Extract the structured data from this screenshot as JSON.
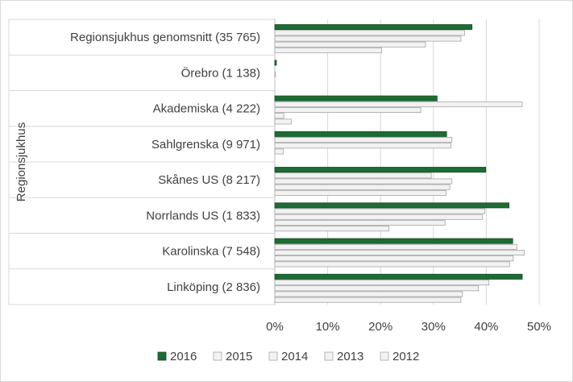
{
  "chart_data": {
    "type": "bar",
    "orientation": "horizontal",
    "ylabel": "Regionsjukhus",
    "xlabel": "",
    "xlim": [
      0,
      50
    ],
    "x_ticks": [
      "0%",
      "10%",
      "20%",
      "30%",
      "40%",
      "50%"
    ],
    "categories": [
      "Regionsjukhus genomsnitt (35 765)",
      "Örebro (1 138)",
      "Akademiska (4 222)",
      "Sahlgrenska (9 971)",
      "Skånes US (8 217)",
      "Norrlands US (1 833)",
      "Karolinska (7 548)",
      "Linköping (2 836)"
    ],
    "series": [
      {
        "name": "2016",
        "color": "#1e6b34",
        "values": [
          37.3,
          0.3,
          30.7,
          32.5,
          39.9,
          44.3,
          45.0,
          46.8
        ]
      },
      {
        "name": "2015",
        "color": "#f2f2f2",
        "values": [
          35.9,
          0,
          46.8,
          33.5,
          29.6,
          39.7,
          45.8,
          40.5
        ]
      },
      {
        "name": "2014",
        "color": "#f2f2f2",
        "values": [
          35.2,
          0.1,
          27.6,
          33.3,
          33.5,
          39.3,
          47.2,
          38.5
        ]
      },
      {
        "name": "2013",
        "color": "#f2f2f2",
        "values": [
          28.5,
          0,
          1.7,
          1.6,
          33.1,
          32.2,
          45.1,
          35.5
        ]
      },
      {
        "name": "2012",
        "color": "#f2f2f2",
        "values": [
          20.2,
          0,
          3.1,
          0,
          32.4,
          21.6,
          44.4,
          35.2
        ]
      }
    ],
    "legend_position": "bottom",
    "grid": true
  }
}
